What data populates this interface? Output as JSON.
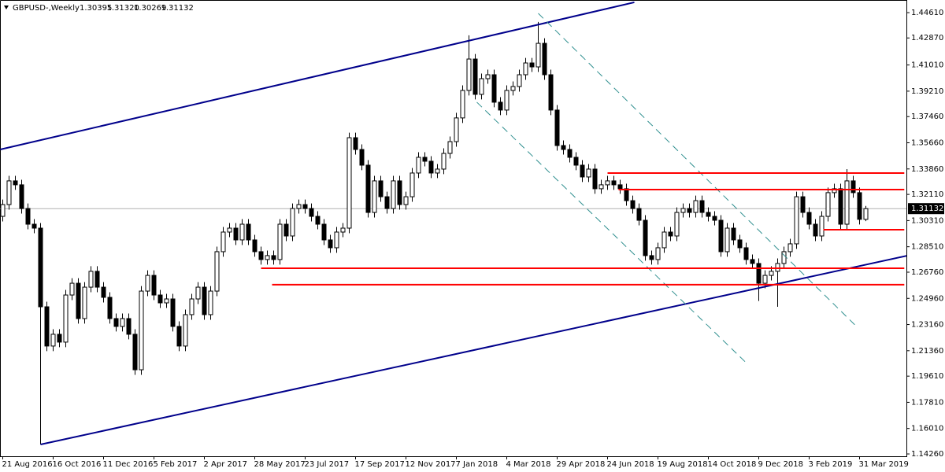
{
  "chart_data": {
    "type": "candlestick",
    "title": "GBPUSD-,Weekly",
    "header_ohlc": [
      {
        "value": 1.30395,
        "label": "1.30395"
      },
      {
        "value": 1.3132,
        "label": "1.31320"
      },
      {
        "value": 1.30269,
        "label": "1.30269"
      },
      {
        "value": 1.31132,
        "label": "1.31132"
      }
    ],
    "last_price": {
      "value": 1.31132,
      "label": "1.31132"
    },
    "up_color": "#ffffff",
    "down_color": "#000000",
    "categories": [
      "21 Aug 2016",
      null,
      null,
      null,
      null,
      null,
      null,
      null,
      "16 Oct 2016",
      null,
      null,
      null,
      null,
      null,
      null,
      null,
      "11 Dec 2016",
      null,
      null,
      null,
      null,
      null,
      null,
      null,
      "5 Feb 2017",
      null,
      null,
      null,
      null,
      null,
      null,
      null,
      "2 Apr 2017",
      null,
      null,
      null,
      null,
      null,
      null,
      null,
      "28 May 2017",
      null,
      null,
      null,
      null,
      null,
      null,
      null,
      "23 Jul 2017",
      null,
      null,
      null,
      null,
      null,
      null,
      null,
      "17 Sep 2017",
      null,
      null,
      null,
      null,
      null,
      null,
      null,
      "12 Nov 2017",
      null,
      null,
      null,
      null,
      null,
      null,
      null,
      "7 Jan 2018",
      null,
      null,
      null,
      null,
      null,
      null,
      null,
      "4 Mar 2018",
      null,
      null,
      null,
      null,
      null,
      null,
      null,
      "29 Apr 2018",
      null,
      null,
      null,
      null,
      null,
      null,
      null,
      "24 Jun 2018",
      null,
      null,
      null,
      null,
      null,
      null,
      null,
      "19 Aug 2018",
      null,
      null,
      null,
      null,
      null,
      null,
      null,
      "14 Oct 2018",
      null,
      null,
      null,
      null,
      null,
      null,
      null,
      "9 Dec 2018",
      null,
      null,
      null,
      null,
      null,
      null,
      null,
      "3 Feb 2019",
      null,
      null,
      null,
      null,
      null,
      null,
      null,
      "31 Mar 2019",
      null
    ],
    "candles": [
      [
        1.306,
        1.3176,
        1.3025,
        1.3141
      ],
      [
        1.3141,
        1.3339,
        1.3106,
        1.3304
      ],
      [
        1.3304,
        1.3339,
        1.3242,
        1.3277
      ],
      [
        1.3277,
        1.3312,
        1.3079,
        1.3114
      ],
      [
        1.3114,
        1.3149,
        1.2971,
        1.3006
      ],
      [
        1.3006,
        1.3041,
        1.2944,
        1.2979
      ],
      [
        1.2979,
        1.3014,
        1.1491,
        1.2438
      ],
      [
        1.2438,
        1.2473,
        1.2133,
        1.2168
      ],
      [
        1.2168,
        1.2284,
        1.2133,
        1.2249
      ],
      [
        1.2249,
        1.2284,
        1.216,
        1.2195
      ],
      [
        1.2195,
        1.2554,
        1.216,
        1.2519
      ],
      [
        1.2519,
        1.2635,
        1.2484,
        1.26
      ],
      [
        1.26,
        1.2635,
        1.2322,
        1.2357
      ],
      [
        1.2357,
        1.2608,
        1.2322,
        1.2573
      ],
      [
        1.2573,
        1.2717,
        1.2538,
        1.2682
      ],
      [
        1.2682,
        1.2717,
        1.2538,
        1.2573
      ],
      [
        1.2573,
        1.2608,
        1.2468,
        1.2503
      ],
      [
        1.2503,
        1.2538,
        1.2322,
        1.2357
      ],
      [
        1.2357,
        1.2392,
        1.2268,
        1.2303
      ],
      [
        1.2303,
        1.2392,
        1.2268,
        1.2357
      ],
      [
        1.2357,
        1.2392,
        1.2214,
        1.2249
      ],
      [
        1.2249,
        1.2284,
        1.197,
        1.2005
      ],
      [
        1.2005,
        1.2581,
        1.197,
        1.2546
      ],
      [
        1.2546,
        1.2689,
        1.2511,
        1.2654
      ],
      [
        1.2654,
        1.2689,
        1.2484,
        1.2519
      ],
      [
        1.2519,
        1.2554,
        1.243,
        1.2465
      ],
      [
        1.2465,
        1.2527,
        1.243,
        1.2492
      ],
      [
        1.2492,
        1.2527,
        1.2268,
        1.2303
      ],
      [
        1.2303,
        1.2338,
        1.2133,
        1.2168
      ],
      [
        1.2168,
        1.2419,
        1.2133,
        1.2384
      ],
      [
        1.2384,
        1.2527,
        1.2349,
        1.2492
      ],
      [
        1.2492,
        1.2608,
        1.2457,
        1.2573
      ],
      [
        1.2573,
        1.2608,
        1.2349,
        1.2384
      ],
      [
        1.2384,
        1.2581,
        1.2349,
        1.2546
      ],
      [
        1.2546,
        1.2852,
        1.2511,
        1.2817
      ],
      [
        1.2817,
        1.2987,
        1.2782,
        1.2952
      ],
      [
        1.2952,
        1.3014,
        1.2917,
        1.2979
      ],
      [
        1.2979,
        1.3014,
        1.2863,
        1.2898
      ],
      [
        1.2898,
        1.3041,
        1.2863,
        1.3006
      ],
      [
        1.3006,
        1.3041,
        1.2863,
        1.2898
      ],
      [
        1.2898,
        1.2933,
        1.2782,
        1.2817
      ],
      [
        1.2817,
        1.2852,
        1.2728,
        1.2763
      ],
      [
        1.2763,
        1.2825,
        1.2728,
        1.279
      ],
      [
        1.279,
        1.2825,
        1.2728,
        1.2763
      ],
      [
        1.2763,
        1.3041,
        1.2728,
        1.3006
      ],
      [
        1.3006,
        1.3041,
        1.289,
        1.2925
      ],
      [
        1.2925,
        1.3149,
        1.289,
        1.3114
      ],
      [
        1.3114,
        1.3176,
        1.3079,
        1.3141
      ],
      [
        1.3141,
        1.3176,
        1.3079,
        1.3114
      ],
      [
        1.3114,
        1.3149,
        1.3025,
        1.306
      ],
      [
        1.306,
        1.3095,
        1.2971,
        1.3006
      ],
      [
        1.3006,
        1.3041,
        1.2863,
        1.2898
      ],
      [
        1.2898,
        1.2933,
        1.2809,
        1.2844
      ],
      [
        1.2844,
        1.2987,
        1.2809,
        1.2952
      ],
      [
        1.2952,
        1.3014,
        1.2917,
        1.2979
      ],
      [
        1.2979,
        1.3636,
        1.2944,
        1.3601
      ],
      [
        1.3601,
        1.3636,
        1.3485,
        1.352
      ],
      [
        1.352,
        1.3555,
        1.3377,
        1.3412
      ],
      [
        1.3412,
        1.3447,
        1.3052,
        1.3087
      ],
      [
        1.3087,
        1.3339,
        1.3052,
        1.3304
      ],
      [
        1.3304,
        1.3339,
        1.316,
        1.3195
      ],
      [
        1.3195,
        1.323,
        1.3079,
        1.3114
      ],
      [
        1.3114,
        1.3339,
        1.3079,
        1.3304
      ],
      [
        1.3304,
        1.3339,
        1.3106,
        1.3141
      ],
      [
        1.3141,
        1.323,
        1.3106,
        1.3195
      ],
      [
        1.3195,
        1.3393,
        1.316,
        1.3358
      ],
      [
        1.3358,
        1.3501,
        1.3323,
        1.3466
      ],
      [
        1.3466,
        1.3501,
        1.3404,
        1.3439
      ],
      [
        1.3439,
        1.3474,
        1.3323,
        1.3358
      ],
      [
        1.3358,
        1.342,
        1.3323,
        1.3385
      ],
      [
        1.3385,
        1.3528,
        1.335,
        1.3493
      ],
      [
        1.3493,
        1.3609,
        1.3458,
        1.3574
      ],
      [
        1.3574,
        1.3772,
        1.3539,
        1.3737
      ],
      [
        1.3737,
        1.3961,
        1.3702,
        1.3926
      ],
      [
        1.3926,
        1.4305,
        1.3891,
        1.4142
      ],
      [
        1.4142,
        1.4177,
        1.3864,
        1.3899
      ],
      [
        1.3899,
        1.4042,
        1.3864,
        1.4007
      ],
      [
        1.4007,
        1.4069,
        1.3972,
        1.4034
      ],
      [
        1.4034,
        1.4069,
        1.381,
        1.3845
      ],
      [
        1.3845,
        1.388,
        1.3756,
        1.3791
      ],
      [
        1.3791,
        1.3961,
        1.3756,
        1.3926
      ],
      [
        1.3926,
        1.3988,
        1.3891,
        1.3953
      ],
      [
        1.3953,
        1.4069,
        1.3918,
        1.4034
      ],
      [
        1.4034,
        1.415,
        1.3999,
        1.4115
      ],
      [
        1.4115,
        1.415,
        1.4053,
        1.4088
      ],
      [
        1.4088,
        1.4397,
        1.4053,
        1.425
      ],
      [
        1.425,
        1.4285,
        1.3999,
        1.4034
      ],
      [
        1.4034,
        1.4069,
        1.3756,
        1.3791
      ],
      [
        1.3791,
        1.3826,
        1.3512,
        1.3547
      ],
      [
        1.3547,
        1.3582,
        1.3485,
        1.352
      ],
      [
        1.352,
        1.3555,
        1.3431,
        1.3466
      ],
      [
        1.3466,
        1.3501,
        1.3377,
        1.3412
      ],
      [
        1.3412,
        1.3447,
        1.3296,
        1.3331
      ],
      [
        1.3331,
        1.342,
        1.3296,
        1.3385
      ],
      [
        1.3385,
        1.342,
        1.3215,
        1.325
      ],
      [
        1.325,
        1.3312,
        1.3215,
        1.3277
      ],
      [
        1.3277,
        1.3339,
        1.3242,
        1.3304
      ],
      [
        1.3304,
        1.3339,
        1.3242,
        1.3277
      ],
      [
        1.3277,
        1.3312,
        1.3215,
        1.325
      ],
      [
        1.325,
        1.3285,
        1.3133,
        1.3168
      ],
      [
        1.3168,
        1.3203,
        1.3079,
        1.3114
      ],
      [
        1.3114,
        1.3149,
        1.2998,
        1.3033
      ],
      [
        1.3033,
        1.3068,
        1.2755,
        1.279
      ],
      [
        1.279,
        1.2825,
        1.2728,
        1.2763
      ],
      [
        1.2763,
        1.2879,
        1.2728,
        1.2844
      ],
      [
        1.2844,
        1.2987,
        1.2809,
        1.2952
      ],
      [
        1.2952,
        1.2987,
        1.289,
        1.2925
      ],
      [
        1.2925,
        1.3122,
        1.289,
        1.3087
      ],
      [
        1.3087,
        1.3149,
        1.3052,
        1.3114
      ],
      [
        1.3114,
        1.3149,
        1.3052,
        1.3087
      ],
      [
        1.3087,
        1.3203,
        1.3052,
        1.3168
      ],
      [
        1.3168,
        1.3203,
        1.3052,
        1.3087
      ],
      [
        1.3087,
        1.3122,
        1.3025,
        1.306
      ],
      [
        1.306,
        1.3095,
        1.2998,
        1.3033
      ],
      [
        1.3033,
        1.3068,
        1.2782,
        1.2817
      ],
      [
        1.2817,
        1.3014,
        1.2782,
        1.2979
      ],
      [
        1.2979,
        1.3014,
        1.2863,
        1.2898
      ],
      [
        1.2898,
        1.2933,
        1.2809,
        1.2844
      ],
      [
        1.2844,
        1.2879,
        1.2728,
        1.2763
      ],
      [
        1.2763,
        1.2798,
        1.2701,
        1.2736
      ],
      [
        1.2736,
        1.2771,
        1.2478,
        1.26
      ],
      [
        1.26,
        1.2689,
        1.2565,
        1.2654
      ],
      [
        1.2654,
        1.2717,
        1.2619,
        1.2682
      ],
      [
        1.2682,
        1.2771,
        1.2438,
        1.2736
      ],
      [
        1.2736,
        1.2852,
        1.2701,
        1.2817
      ],
      [
        1.2817,
        1.2906,
        1.2782,
        1.2871
      ],
      [
        1.2871,
        1.323,
        1.2836,
        1.3195
      ],
      [
        1.3195,
        1.323,
        1.3052,
        1.3087
      ],
      [
        1.3087,
        1.3122,
        1.2971,
        1.3006
      ],
      [
        1.3006,
        1.3041,
        1.289,
        1.2925
      ],
      [
        1.2925,
        1.3095,
        1.289,
        1.306
      ],
      [
        1.306,
        1.3258,
        1.3025,
        1.3223
      ],
      [
        1.3223,
        1.3285,
        1.3188,
        1.325
      ],
      [
        1.325,
        1.3285,
        1.2971,
        1.3006
      ],
      [
        1.3006,
        1.3385,
        1.2971,
        1.3304
      ],
      [
        1.3304,
        1.3339,
        1.3188,
        1.3223
      ],
      [
        1.3223,
        1.3258,
        1.3004,
        1.30395
      ],
      [
        1.30395,
        1.3132,
        1.30269,
        1.31132
      ]
    ],
    "ylim": [
      1.141,
      1.4548
    ],
    "yticks": [
      {
        "value": 1.4461,
        "label": "1.44610"
      },
      {
        "value": 1.4287,
        "label": "1.42870"
      },
      {
        "value": 1.4101,
        "label": "1.41010"
      },
      {
        "value": 1.3921,
        "label": "1.39210"
      },
      {
        "value": 1.3746,
        "label": "1.37460"
      },
      {
        "value": 1.3566,
        "label": "1.35660"
      },
      {
        "value": 1.3386,
        "label": "1.33860"
      },
      {
        "value": 1.3211,
        "label": "1.32110"
      },
      {
        "value": 1.3031,
        "label": "1.30310"
      },
      {
        "value": 1.2851,
        "label": "1.28510"
      },
      {
        "value": 1.2676,
        "label": "1.26760"
      },
      {
        "value": 1.2496,
        "label": "1.24960"
      },
      {
        "value": 1.2316,
        "label": "1.23160"
      },
      {
        "value": 1.2136,
        "label": "1.21360"
      },
      {
        "value": 1.1961,
        "label": "1.19610"
      },
      {
        "value": 1.1781,
        "label": "1.17810"
      },
      {
        "value": 1.1601,
        "label": "1.16010"
      },
      {
        "value": 1.1426,
        "label": "1.14260"
      }
    ],
    "drawings": [
      {
        "x1": -0.4,
        "y1": 1.352,
        "x2": 100.25,
        "y2": 1.4532,
        "color": "#00008b",
        "dash": false
      },
      {
        "x1": 6,
        "y1": 1.1491,
        "x2": 143.6,
        "y2": 1.279,
        "color": "#00008b",
        "dash": false
      },
      {
        "x1": 85,
        "y1": 1.4456,
        "x2": 135.25,
        "y2": 1.2314,
        "color": "#2f8f8f",
        "dash": true
      },
      {
        "x1": 75.25,
        "y1": 1.3845,
        "x2": 118.1,
        "y2": 1.2049,
        "color": "#2f8f8f",
        "dash": true
      },
      {
        "x1": 96,
        "y1": 1.3358,
        "x2": 143.1,
        "y2": 1.3358,
        "color": "#ff0000",
        "dash": false
      },
      {
        "x1": 97.75,
        "y1": 1.3244,
        "x2": 143.1,
        "y2": 1.3244,
        "color": "#ff0000",
        "dash": false
      },
      {
        "x1": 130.25,
        "y1": 1.2968,
        "x2": 143.1,
        "y2": 1.2968,
        "color": "#ff0000",
        "dash": false
      },
      {
        "x1": 41,
        "y1": 1.2703,
        "x2": 143.1,
        "y2": 1.2703,
        "color": "#ff0000",
        "dash": false
      },
      {
        "x1": 42.75,
        "y1": 1.259,
        "x2": 143.1,
        "y2": 1.259,
        "color": "#ff0000",
        "dash": false
      }
    ]
  }
}
